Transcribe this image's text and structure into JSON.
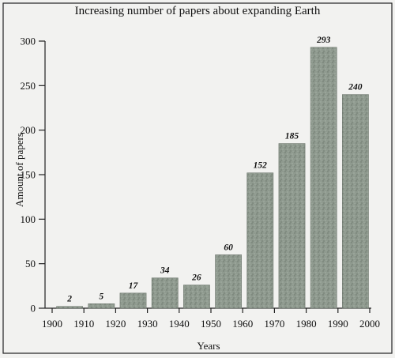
{
  "chart_data": {
    "type": "bar",
    "title": "Increasing number of papers about expanding Earth",
    "xlabel": "Years",
    "ylabel": "Amount of papers",
    "x_ticks": [
      "1900",
      "1910",
      "1920",
      "1930",
      "1940",
      "1950",
      "1960",
      "1970",
      "1980",
      "1990",
      "2000"
    ],
    "y_ticks": [
      0,
      50,
      100,
      150,
      200,
      250,
      300
    ],
    "xlim": [
      1900,
      2000
    ],
    "ylim": [
      0,
      300
    ],
    "bars": [
      {
        "start": 1901,
        "end": 1910,
        "value": 2
      },
      {
        "start": 1911,
        "end": 1920,
        "value": 5
      },
      {
        "start": 1921,
        "end": 1930,
        "value": 17
      },
      {
        "start": 1931,
        "end": 1940,
        "value": 34
      },
      {
        "start": 1941,
        "end": 1950,
        "value": 26
      },
      {
        "start": 1951,
        "end": 1960,
        "value": 60
      },
      {
        "start": 1961,
        "end": 1970,
        "value": 152
      },
      {
        "start": 1971,
        "end": 1980,
        "value": 185
      },
      {
        "start": 1981,
        "end": 1990,
        "value": 293
      },
      {
        "start": 1991,
        "end": 2000,
        "value": 240
      }
    ],
    "grid": false,
    "bar_color": "#8f9a8f"
  }
}
